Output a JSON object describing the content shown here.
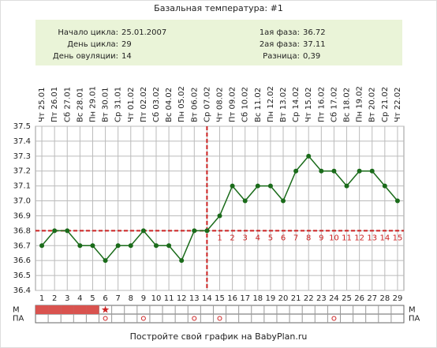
{
  "title": "Базальная температура: #1",
  "info": [
    {
      "label": "Начало цикла:",
      "value": "25.01.2007"
    },
    {
      "label": "День цикла:",
      "value": 29
    },
    {
      "label": "День овуляции:",
      "value": 14
    },
    {
      "label": "1ая фаза:",
      "value": 36.72
    },
    {
      "label": "2ая фаза:",
      "value": 37.11
    },
    {
      "label": "Разница:",
      "value": "0,39"
    }
  ],
  "chart_data": {
    "type": "line",
    "categories": [
      "1",
      "2",
      "3",
      "4",
      "5",
      "6",
      "7",
      "8",
      "9",
      "10",
      "11",
      "12",
      "13",
      "14",
      "15",
      "16",
      "17",
      "18",
      "19",
      "20",
      "21",
      "22",
      "23",
      "24",
      "25",
      "26",
      "27",
      "28",
      "29"
    ],
    "dates": [
      "Чт 25.01",
      "Пт 26.01",
      "Сб 27.01",
      "Вс 28.01",
      "Пн 29.01",
      "Вт 30.01",
      "Ср 31.01",
      "Чт 01.02",
      "Пт 02.02",
      "Сб 03.02",
      "Вс 04.02",
      "Пн 05.02",
      "Вт 06.02",
      "Ср 07.02",
      "Чт 08.02",
      "Пт 09.02",
      "Сб 10.02",
      "Вс 11.02",
      "Пн 12.02",
      "Вт 13.02",
      "Ср 14.02",
      "Чт 15.02",
      "Пт 16.02",
      "Сб 17.02",
      "Вс 18.02",
      "Пн 19.02",
      "Вт 20.02",
      "Ср 21.02",
      "Чт 22.02"
    ],
    "values": [
      36.7,
      36.8,
      36.8,
      36.7,
      36.7,
      36.6,
      36.7,
      36.7,
      36.8,
      36.7,
      36.7,
      36.6,
      36.8,
      36.8,
      36.9,
      37.1,
      37.0,
      37.1,
      37.1,
      37.0,
      37.2,
      37.3,
      37.2,
      37.2,
      37.1,
      37.2,
      37.2,
      37.1,
      37.0
    ],
    "color": "#1a6b1a",
    "ylim": [
      36.4,
      37.5
    ],
    "yticks": [
      36.4,
      36.5,
      36.6,
      36.7,
      36.8,
      36.9,
      {
        "value": 37,
        "label": "37.0"
      },
      37.1,
      37.2,
      37.3,
      37.4,
      37.5
    ],
    "grid": true,
    "coverline": 36.8,
    "ovulation_day": 14,
    "marker_color": "#cc2222",
    "post_ovulation_days": [
      1,
      2,
      3,
      4,
      5,
      6,
      7,
      8,
      9,
      10,
      11,
      12,
      13,
      14,
      15
    ],
    "m_row": {
      "label": "М",
      "bleeding_days": [
        1,
        2,
        3,
        4,
        5
      ],
      "spotting_days": [
        6
      ]
    },
    "pa_row": {
      "label": "ПА",
      "days": [
        6,
        9,
        13,
        15,
        24
      ]
    }
  },
  "footer": "Постройте свой график на BabyPlan.ru"
}
